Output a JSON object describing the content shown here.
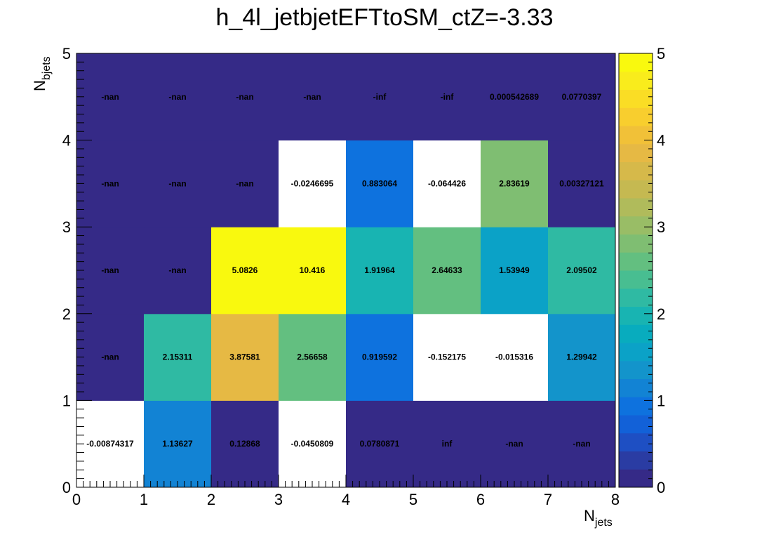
{
  "chart_data": {
    "type": "heatmap",
    "title": "h_4l_jetbjetEFTtoSM_ctZ=-3.33",
    "xlabel": {
      "main": "N",
      "sub": "jets"
    },
    "ylabel": {
      "main": "N",
      "sub": "bjets"
    },
    "xlim": [
      0,
      8
    ],
    "ylim": [
      0,
      5
    ],
    "zlim": [
      0,
      5
    ],
    "x_ticks": [
      "0",
      "1",
      "2",
      "3",
      "4",
      "5",
      "6",
      "7",
      "8"
    ],
    "y_ticks": [
      "0",
      "1",
      "2",
      "3",
      "4",
      "5"
    ],
    "colorbar_ticks": [
      "0",
      "1",
      "2",
      "3",
      "4",
      "5"
    ],
    "palette": [
      "#352a87",
      "#2a3ca3",
      "#1e4fc3",
      "#1261d8",
      "#0e72de",
      "#1283d4",
      "#1394cb",
      "#0ba2c7",
      "#08acbe",
      "#18b4b2",
      "#2fbaa3",
      "#48be91",
      "#63bf80",
      "#7fbe72",
      "#99bd66",
      "#b0bb5b",
      "#c5b951",
      "#d6b94a",
      "#e6b944",
      "#f1c138",
      "#f8ce2e",
      "#fadd25",
      "#f9ec1c",
      "#f9f90e"
    ],
    "colors": {
      "overflow_high": "#f9f90e",
      "underflow_low": "#ffffff"
    },
    "rows": [
      {
        "y_bin": 0,
        "labels": [
          "-0.00874317",
          "1.13627",
          "0.12868",
          "-0.0450809",
          "0.0780871",
          "inf",
          "-nan",
          "-nan"
        ],
        "values": [
          -0.00874317,
          1.13627,
          0.12868,
          -0.0450809,
          0.0780871,
          null,
          null,
          null
        ]
      },
      {
        "y_bin": 1,
        "labels": [
          "-nan",
          "2.15311",
          "3.87581",
          "2.56658",
          "0.919592",
          "-0.152175",
          "-0.015316",
          "1.29942"
        ],
        "values": [
          null,
          2.15311,
          3.87581,
          2.56658,
          0.919592,
          -0.152175,
          -0.015316,
          1.29942
        ]
      },
      {
        "y_bin": 2,
        "labels": [
          "-nan",
          "-nan",
          "5.0826",
          "10.416",
          "1.91964",
          "2.64633",
          "1.53949",
          "2.09502"
        ],
        "values": [
          null,
          null,
          5.0826,
          10.416,
          1.91964,
          2.64633,
          1.53949,
          2.09502
        ]
      },
      {
        "y_bin": 3,
        "labels": [
          "-nan",
          "-nan",
          "-nan",
          "-0.0246695",
          "0.883064",
          "-0.064426",
          "2.83619",
          "0.00327121"
        ],
        "values": [
          null,
          null,
          null,
          -0.0246695,
          0.883064,
          -0.064426,
          2.83619,
          0.00327121
        ]
      },
      {
        "y_bin": 4,
        "labels": [
          "-nan",
          "-nan",
          "-nan",
          "-nan",
          "-inf",
          "-inf",
          "0.000542689",
          "0.0770397"
        ],
        "values": [
          null,
          null,
          null,
          null,
          null,
          null,
          0.000542689,
          0.0770397
        ]
      }
    ]
  }
}
